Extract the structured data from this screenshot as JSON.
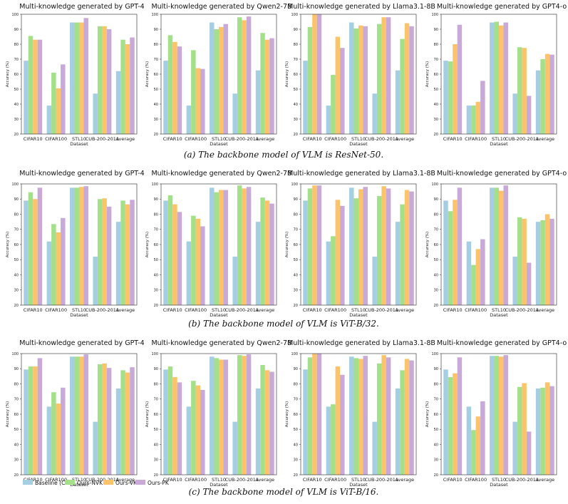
{
  "colors": {
    "Baseline (CLIP)": "#a6cee3",
    "Ours-NVK": "#a4e08a",
    "Ours-VK": "#fbc46b",
    "Ours-PK": "#c9a9d8",
    "axis": "#444444"
  },
  "legend": [
    "Baseline (CLIP)",
    "Ours-NVK",
    "Ours-VK",
    "Ours-PK"
  ],
  "captions": [
    "(a) The backbone model of VLM is ResNet-50.",
    "(b) The backbone model of VLM is ViT-B/32.",
    "(c) The backbone model of VLM is ViT-B/16."
  ],
  "chart_data": [
    {
      "type": "bar",
      "row": 0,
      "col": 0,
      "title": "Multi-knowledge generated by GPT-4",
      "categories": [
        "CIFAR10",
        "CIFAR100",
        "STL10",
        "CUB-200-2011",
        "Average"
      ],
      "xlabel": "Dataset",
      "ylabel": "Accuracy (%)",
      "ylim": [
        20,
        100
      ],
      "yticks": [
        20,
        30,
        40,
        50,
        60,
        70,
        80,
        90,
        100
      ],
      "series": [
        {
          "name": "Baseline (CLIP)",
          "values": [
            69,
            39,
            94.5,
            47,
            62
          ]
        },
        {
          "name": "Ours-NVK",
          "values": [
            85.5,
            61,
            94.5,
            92,
            83
          ]
        },
        {
          "name": "Ours-VK",
          "values": [
            83,
            50.5,
            94.5,
            92,
            80
          ]
        },
        {
          "name": "Ours-PK",
          "values": [
            83,
            66.5,
            97.5,
            90,
            84.5
          ]
        }
      ]
    },
    {
      "type": "bar",
      "row": 0,
      "col": 1,
      "title": "Multi-knowledge generated by Qwen2-7B",
      "categories": [
        "CIFAR10",
        "CIFAR100",
        "STL10",
        "CUB-200-2011",
        "Average"
      ],
      "xlabel": "Dataset",
      "ylabel": "Accuracy (%)",
      "ylim": [
        20,
        100
      ],
      "yticks": [
        20,
        30,
        40,
        50,
        60,
        70,
        80,
        90,
        100
      ],
      "series": [
        {
          "name": "Baseline (CLIP)",
          "values": [
            69,
            39,
            94.5,
            47,
            62.5
          ]
        },
        {
          "name": "Ours-NVK",
          "values": [
            86,
            76,
            90,
            98,
            87.5
          ]
        },
        {
          "name": "Ours-VK",
          "values": [
            81.5,
            64,
            91.5,
            96,
            83
          ]
        },
        {
          "name": "Ours-PK",
          "values": [
            78.5,
            63.5,
            93.5,
            98.5,
            84
          ]
        }
      ]
    },
    {
      "type": "bar",
      "row": 0,
      "col": 2,
      "title": "Multi-knowledge generated by Llama3.1-8B",
      "categories": [
        "CIFAR10",
        "CIFAR100",
        "STL10",
        "CUB-200-2011",
        "Average"
      ],
      "xlabel": "Dataset",
      "ylabel": "Accuracy (%)",
      "ylim": [
        20,
        100
      ],
      "yticks": [
        20,
        30,
        40,
        50,
        60,
        70,
        80,
        90,
        100
      ],
      "series": [
        {
          "name": "Baseline (CLIP)",
          "values": [
            69,
            39,
            94.5,
            47,
            62.5
          ]
        },
        {
          "name": "Ours-NVK",
          "values": [
            91.5,
            59.5,
            90.5,
            93.5,
            83.5
          ]
        },
        {
          "name": "Ours-VK",
          "values": [
            100,
            85,
            92.5,
            98,
            94
          ]
        },
        {
          "name": "Ours-PK",
          "values": [
            100,
            77.5,
            92,
            98,
            92
          ]
        }
      ]
    },
    {
      "type": "bar",
      "row": 0,
      "col": 3,
      "title": "Multi-knowledge generated by GPT4-o",
      "categories": [
        "CIFAR10",
        "CIFAR100",
        "STL10",
        "CUB-200-2011",
        "Average"
      ],
      "xlabel": "Dataset",
      "ylabel": "Accuracy (%)",
      "ylim": [
        20,
        100
      ],
      "yticks": [
        20,
        30,
        40,
        50,
        60,
        70,
        80,
        90,
        100
      ],
      "series": [
        {
          "name": "Baseline (CLIP)",
          "values": [
            69,
            39,
            94.5,
            47,
            62.5
          ]
        },
        {
          "name": "Ours-NVK",
          "values": [
            68.5,
            39,
            95,
            78,
            70
          ]
        },
        {
          "name": "Ours-VK",
          "values": [
            80,
            41.5,
            92.5,
            77.5,
            73.5
          ]
        },
        {
          "name": "Ours-PK",
          "values": [
            93,
            55.5,
            94.5,
            45.5,
            73
          ]
        }
      ]
    },
    {
      "type": "bar",
      "row": 1,
      "col": 0,
      "title": "Multi-knowledge generated by GPT-4",
      "categories": [
        "CIFAR10",
        "CIFAR100",
        "STL10",
        "CUB-200-2011",
        "Average"
      ],
      "xlabel": "Dataset",
      "ylabel": "Accuracy (%)",
      "ylim": [
        20,
        100
      ],
      "yticks": [
        20,
        30,
        40,
        50,
        60,
        70,
        80,
        90,
        100
      ],
      "series": [
        {
          "name": "Baseline (CLIP)",
          "values": [
            89,
            62,
            97.5,
            52,
            75
          ]
        },
        {
          "name": "Ours-NVK",
          "values": [
            94.5,
            73.5,
            97.5,
            90,
            89
          ]
        },
        {
          "name": "Ours-VK",
          "values": [
            90,
            68,
            98,
            90.5,
            86.5
          ]
        },
        {
          "name": "Ours-PK",
          "values": [
            97.5,
            77.5,
            98.5,
            85,
            89.5
          ]
        }
      ]
    },
    {
      "type": "bar",
      "row": 1,
      "col": 1,
      "title": "Multi-knowledge generated by Qwen2-7B",
      "categories": [
        "CIFAR10",
        "CIFAR100",
        "STL10",
        "CUB-200-2011",
        "Average"
      ],
      "xlabel": "Dataset",
      "ylabel": "Accuracy (%)",
      "ylim": [
        20,
        100
      ],
      "yticks": [
        20,
        30,
        40,
        50,
        60,
        70,
        80,
        90,
        100
      ],
      "series": [
        {
          "name": "Baseline (CLIP)",
          "values": [
            89,
            62,
            97.5,
            52,
            75
          ]
        },
        {
          "name": "Ours-NVK",
          "values": [
            92.5,
            79,
            94.5,
            99,
            91
          ]
        },
        {
          "name": "Ours-VK",
          "values": [
            86.5,
            77,
            96,
            97,
            89
          ]
        },
        {
          "name": "Ours-PK",
          "values": [
            81.5,
            72,
            96,
            98,
            87
          ]
        }
      ]
    },
    {
      "type": "bar",
      "row": 1,
      "col": 2,
      "title": "Multi-knowledge generated by Llama3.1-8B",
      "categories": [
        "CIFAR10",
        "CIFAR100",
        "STL10",
        "CUB-200-2011",
        "Average"
      ],
      "xlabel": "Dataset",
      "ylabel": "Accuracy (%)",
      "ylim": [
        20,
        100
      ],
      "yticks": [
        20,
        30,
        40,
        50,
        60,
        70,
        80,
        90,
        100
      ],
      "series": [
        {
          "name": "Baseline (CLIP)",
          "values": [
            89,
            62,
            97.5,
            52,
            75
          ]
        },
        {
          "name": "Ours-NVK",
          "values": [
            97,
            65.5,
            90.5,
            92,
            86.5
          ]
        },
        {
          "name": "Ours-VK",
          "values": [
            99,
            89.5,
            96.5,
            98.5,
            96
          ]
        },
        {
          "name": "Ours-PK",
          "values": [
            99,
            85.5,
            98,
            97,
            95
          ]
        }
      ]
    },
    {
      "type": "bar",
      "row": 1,
      "col": 3,
      "title": "Multi-knowledge generated by GPT4-o",
      "categories": [
        "CIFAR10",
        "CIFAR100",
        "STL10",
        "CUB-200-2011",
        "Average"
      ],
      "xlabel": "Dataset",
      "ylabel": "Accuracy (%)",
      "ylim": [
        20,
        100
      ],
      "yticks": [
        20,
        30,
        40,
        50,
        60,
        70,
        80,
        90,
        100
      ],
      "series": [
        {
          "name": "Baseline (CLIP)",
          "values": [
            89,
            62,
            97.5,
            52,
            75
          ]
        },
        {
          "name": "Ours-NVK",
          "values": [
            82,
            46.5,
            97.5,
            78,
            76
          ]
        },
        {
          "name": "Ours-VK",
          "values": [
            89.5,
            57,
            95.5,
            77,
            80
          ]
        },
        {
          "name": "Ours-PK",
          "values": [
            97.5,
            63.5,
            99,
            48,
            77
          ]
        }
      ]
    },
    {
      "type": "bar",
      "row": 2,
      "col": 0,
      "title": "Multi-knowledge generated by GPT-4",
      "categories": [
        "CIFAR10",
        "CIFAR100",
        "STL10",
        "CUB-200-2011",
        "Average"
      ],
      "xlabel": "Dataset",
      "ylabel": "Accuracy (%)",
      "ylim": [
        20,
        100
      ],
      "yticks": [
        20,
        30,
        40,
        50,
        60,
        70,
        80,
        90,
        100
      ],
      "series": [
        {
          "name": "Baseline (CLIP)",
          "values": [
            89.5,
            65,
            98,
            55,
            77
          ]
        },
        {
          "name": "Ours-NVK",
          "values": [
            91.5,
            74.5,
            98,
            93,
            89
          ]
        },
        {
          "name": "Ours-VK",
          "values": [
            91.5,
            67,
            98,
            93.5,
            87.5
          ]
        },
        {
          "name": "Ours-PK",
          "values": [
            97,
            77.5,
            99.5,
            90.5,
            91
          ]
        }
      ]
    },
    {
      "type": "bar",
      "row": 2,
      "col": 1,
      "title": "Multi-knowledge generated by Qwen2-7B",
      "categories": [
        "CIFAR10",
        "CIFAR100",
        "STL10",
        "CUB-200-2011",
        "Average"
      ],
      "xlabel": "Dataset",
      "ylabel": "Accuracy (%)",
      "ylim": [
        20,
        100
      ],
      "yticks": [
        20,
        30,
        40,
        50,
        60,
        70,
        80,
        90,
        100
      ],
      "series": [
        {
          "name": "Baseline (CLIP)",
          "values": [
            89.5,
            65,
            98,
            55,
            77
          ]
        },
        {
          "name": "Ours-NVK",
          "values": [
            91.5,
            82,
            97,
            99,
            92.5
          ]
        },
        {
          "name": "Ours-VK",
          "values": [
            84.5,
            79,
            96,
            98.5,
            89
          ]
        },
        {
          "name": "Ours-PK",
          "values": [
            81,
            76,
            96,
            99.5,
            88
          ]
        }
      ]
    },
    {
      "type": "bar",
      "row": 2,
      "col": 2,
      "title": "Multi-knowledge generated by Llama3.1-8B",
      "categories": [
        "CIFAR10",
        "CIFAR100",
        "STL10",
        "CUB-200-2011",
        "Average"
      ],
      "xlabel": "Dataset",
      "ylabel": "Accuracy (%)",
      "ylim": [
        20,
        100
      ],
      "yticks": [
        20,
        30,
        40,
        50,
        60,
        70,
        80,
        90,
        100
      ],
      "series": [
        {
          "name": "Baseline (CLIP)",
          "values": [
            89.5,
            65,
            98,
            55,
            77
          ]
        },
        {
          "name": "Ours-NVK",
          "values": [
            97.5,
            66.5,
            97,
            93.5,
            89
          ]
        },
        {
          "name": "Ours-VK",
          "values": [
            100,
            91.5,
            96.5,
            99,
            96.5
          ]
        },
        {
          "name": "Ours-PK",
          "values": [
            100,
            86,
            98.5,
            97.5,
            95.5
          ]
        }
      ]
    },
    {
      "type": "bar",
      "row": 2,
      "col": 3,
      "title": "Multi-knowledge generated by GPT4-o",
      "categories": [
        "CIFAR10",
        "CIFAR100",
        "STL10",
        "CUB-200-2011",
        "Average"
      ],
      "xlabel": "Dataset",
      "ylabel": "Accuracy (%)",
      "ylim": [
        20,
        100
      ],
      "yticks": [
        20,
        30,
        40,
        50,
        60,
        70,
        80,
        90,
        100
      ],
      "series": [
        {
          "name": "Baseline (CLIP)",
          "values": [
            89.5,
            65,
            98.5,
            55,
            77
          ]
        },
        {
          "name": "Ours-NVK",
          "values": [
            84.5,
            49.5,
            98.5,
            78,
            77.5
          ]
        },
        {
          "name": "Ours-VK",
          "values": [
            87,
            58.5,
            98,
            80.5,
            81
          ]
        },
        {
          "name": "Ours-PK",
          "values": [
            97.5,
            68.5,
            99,
            48.5,
            78.5
          ]
        }
      ]
    }
  ]
}
